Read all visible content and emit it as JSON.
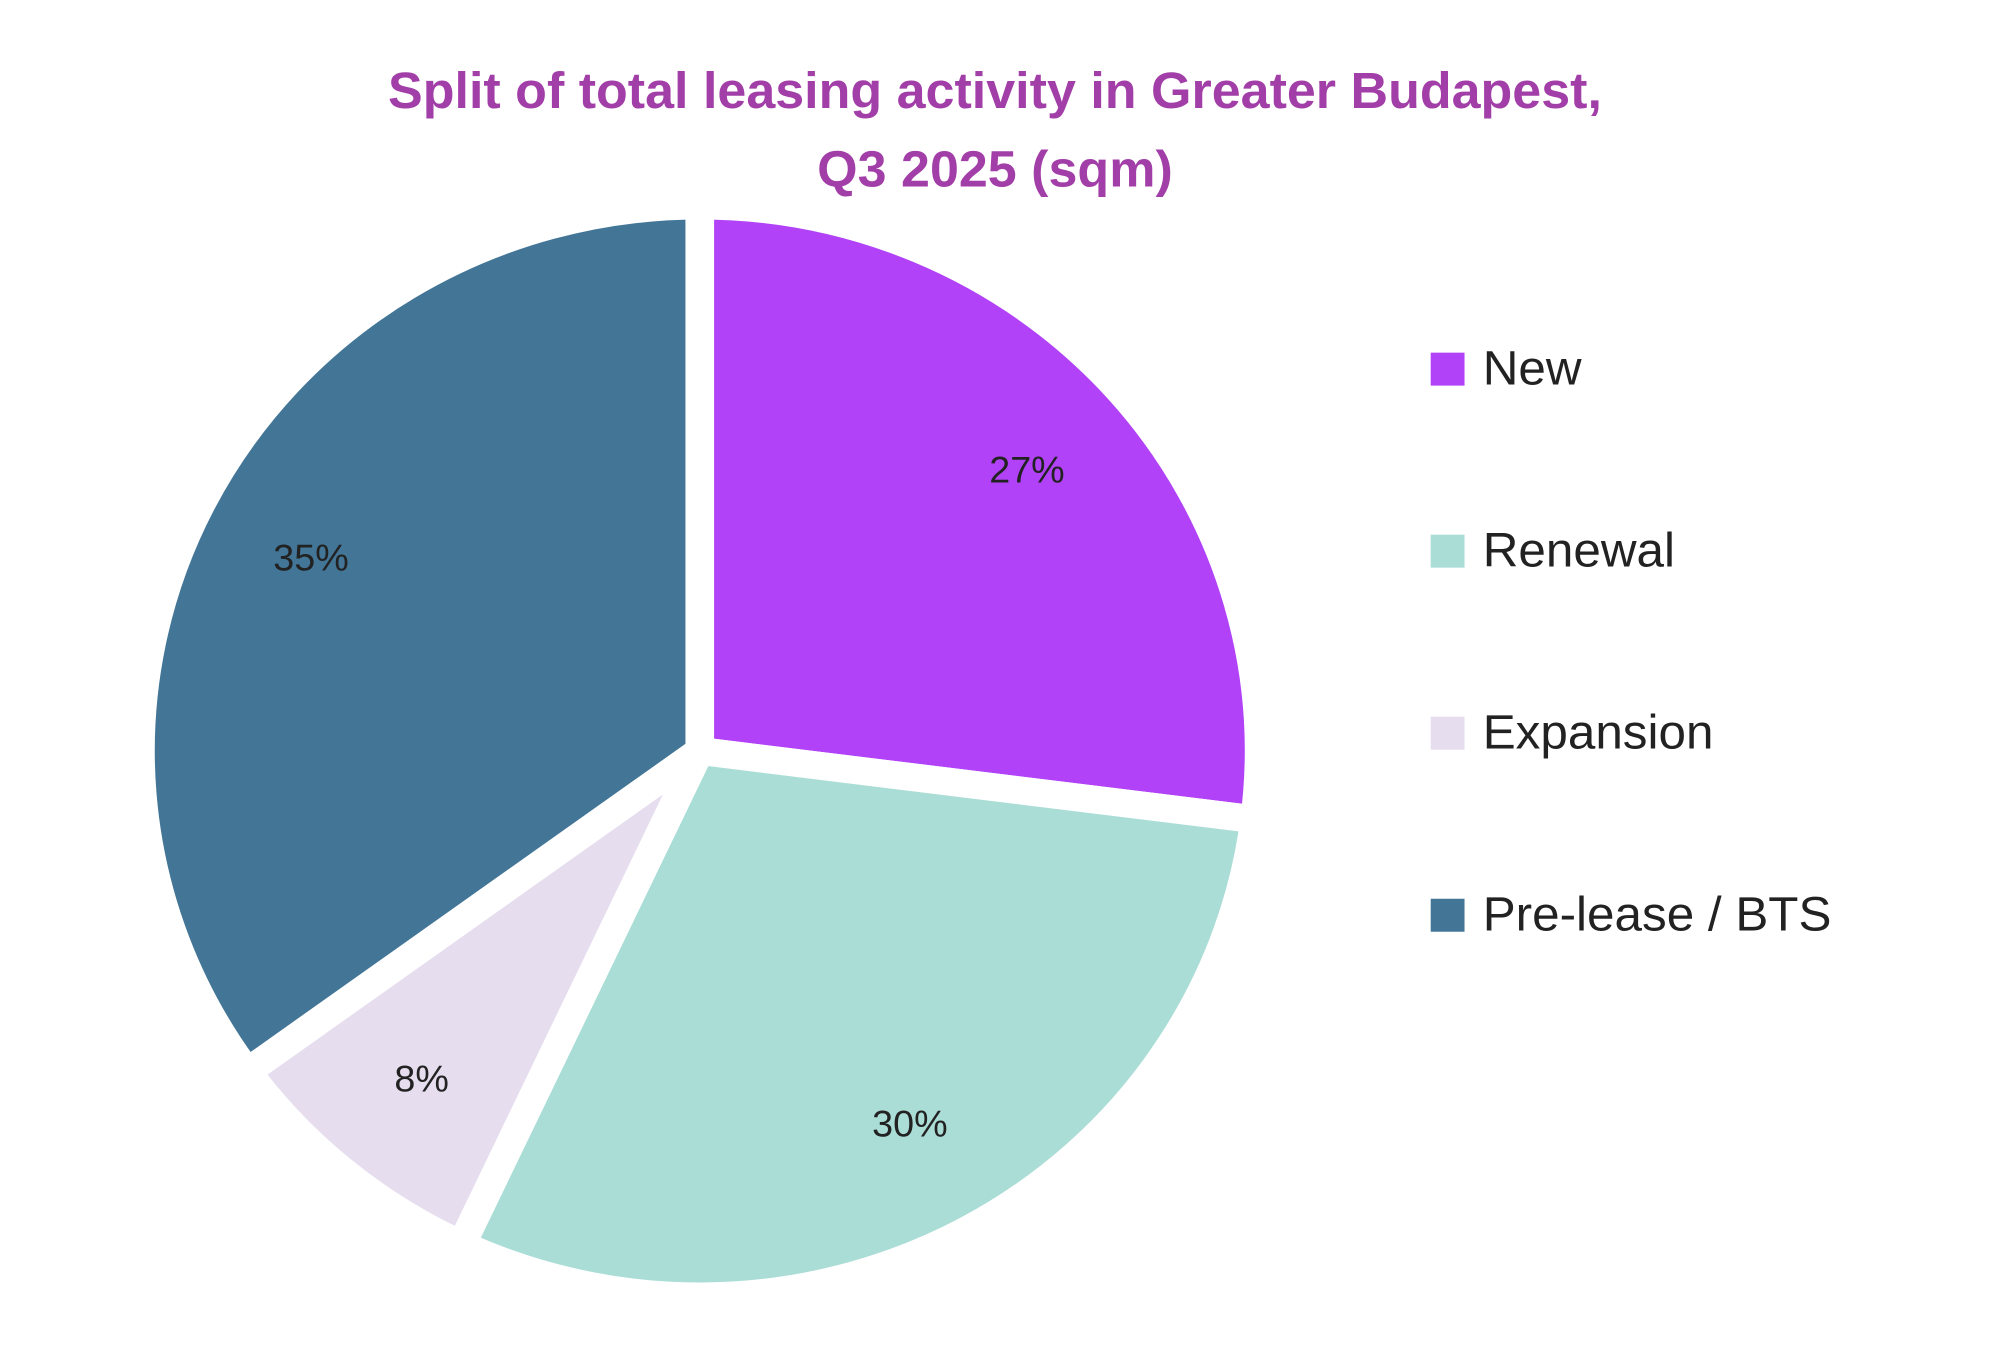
{
  "chart_data": {
    "type": "pie",
    "title": [
      "Split of total leasing activity in Greater Budapest,",
      "Q3 2025 (sqm)"
    ],
    "categories": [
      "New",
      "Renewal",
      "Expansion",
      "Pre-lease / BTS"
    ],
    "values": [
      27,
      30,
      8,
      35
    ],
    "labels": [
      "27%",
      "30%",
      "8%",
      "35%"
    ],
    "colors": [
      "#B142F7",
      "#ABDDD7",
      "#E6DDEF",
      "#427596"
    ],
    "title_color": "#A23EA8",
    "legend_position": "right",
    "start": "top",
    "direction": "clockwise"
  }
}
